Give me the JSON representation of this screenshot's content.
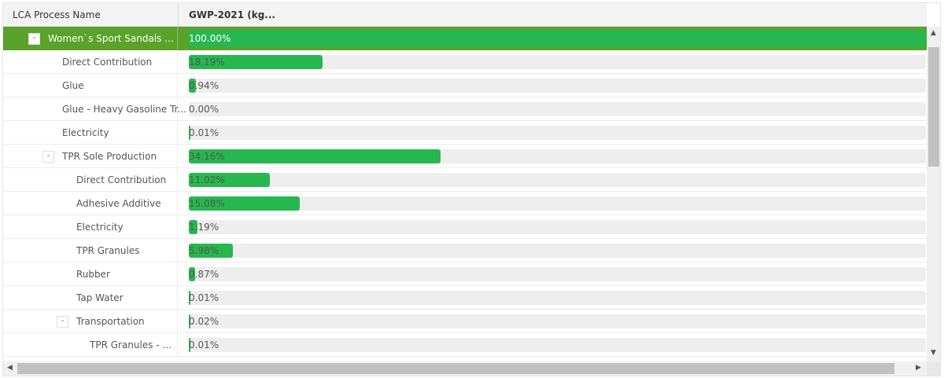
{
  "columns": {
    "name": "LCA Process Name",
    "value": "GWP-2021 (kg..."
  },
  "colors": {
    "accent": "#5aa22a",
    "bar": "#26b84e",
    "track": "#eeeeee"
  },
  "rows": [
    {
      "label": "Women`s Sport Sandals ...",
      "level": 0,
      "toggle": "-",
      "value": "100.00%",
      "pct": 100,
      "selected": true
    },
    {
      "label": "Direct Contribution",
      "level": 1,
      "value": "18.19%",
      "pct": 18.19
    },
    {
      "label": "Glue",
      "level": 1,
      "value": "0.94%",
      "pct": 0.94
    },
    {
      "label": "Glue -  Heavy Gasoline Tr...",
      "level": 1,
      "value": "0.00%",
      "pct": 0
    },
    {
      "label": "Electricity",
      "level": 1,
      "value": "0.01%",
      "pct": 0.01
    },
    {
      "label": "TPR Sole Production",
      "level": 1,
      "toggle": "-",
      "value": "34.16%",
      "pct": 34.16
    },
    {
      "label": "Direct Contribution",
      "level": 2,
      "value": "11.02%",
      "pct": 11.02
    },
    {
      "label": "Adhesive Additive",
      "level": 2,
      "value": "15.08%",
      "pct": 15.08
    },
    {
      "label": "Electricity",
      "level": 2,
      "value": "1.19%",
      "pct": 1.19
    },
    {
      "label": "TPR Granules",
      "level": 2,
      "value": "5.98%",
      "pct": 5.98
    },
    {
      "label": "Rubber",
      "level": 2,
      "value": "0.87%",
      "pct": 0.87
    },
    {
      "label": "Tap Water",
      "level": 2,
      "value": "0.01%",
      "pct": 0.01
    },
    {
      "label": "Transportation",
      "level": 2,
      "toggle": "-",
      "value": "0.02%",
      "pct": 0.02
    },
    {
      "label": "TPR Granules - ...",
      "level": 3,
      "value": "0.01%",
      "pct": 0.01
    }
  ],
  "scrollbars": {
    "up": "▲",
    "down": "▼",
    "left": "◀",
    "right": "▶"
  }
}
